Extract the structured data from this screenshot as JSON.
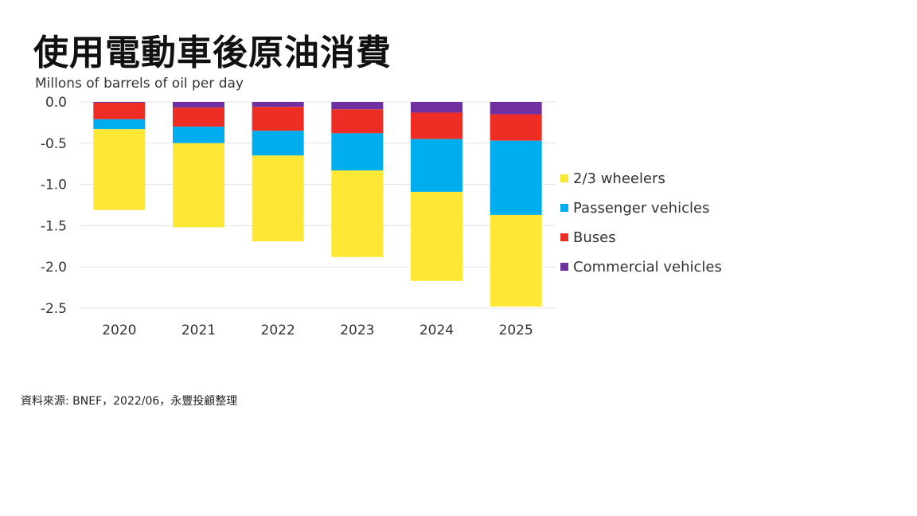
{
  "title": "使用電動車後原油消費",
  "source": "資料來源: BNEF，2022/06，永豐投顧整理",
  "chart_data": {
    "type": "bar",
    "stacked": true,
    "ylabel": "Millons of barrels of oil per day",
    "ylim": [
      -2.5,
      0.0
    ],
    "yticks": [
      "0.0",
      "-0.5",
      "-1.0",
      "-1.5",
      "-2.0",
      "-2.5"
    ],
    "categories": [
      "2020",
      "2021",
      "2022",
      "2023",
      "2024",
      "2025"
    ],
    "grid": true,
    "legend_position": "right",
    "series": [
      {
        "name": "Commercial vehicles",
        "color": "#7030A0",
        "values": [
          -0.01,
          -0.07,
          -0.06,
          -0.09,
          -0.13,
          -0.15
        ]
      },
      {
        "name": "Buses",
        "color": "#EE2E24",
        "values": [
          -0.2,
          -0.23,
          -0.29,
          -0.29,
          -0.32,
          -0.32
        ]
      },
      {
        "name": "Passenger vehicles",
        "color": "#00AEEF",
        "values": [
          -0.12,
          -0.2,
          -0.3,
          -0.45,
          -0.64,
          -0.9
        ]
      },
      {
        "name": "2/3 wheelers",
        "color": "#FFE835",
        "values": [
          -0.98,
          -1.02,
          -1.04,
          -1.05,
          -1.08,
          -1.11
        ]
      }
    ],
    "legend_order": [
      "2/3 wheelers",
      "Passenger vehicles",
      "Buses",
      "Commercial vehicles"
    ]
  }
}
